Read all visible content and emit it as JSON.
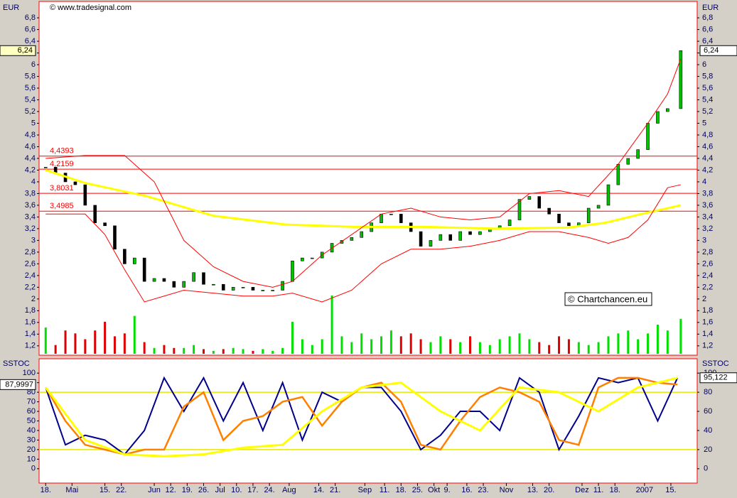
{
  "chart_data": [
    {
      "type": "line",
      "watermark": "© www.tradesignal.com",
      "annotation": "© Chartchancen.eu",
      "y_label": "EUR",
      "xlim": [
        -2,
        198
      ],
      "ylim": [
        1.04,
        7.08
      ],
      "yticks": [
        {
          "value": 1.2,
          "label": "1,2"
        },
        {
          "value": 1.4,
          "label": "1,4"
        },
        {
          "value": 1.6,
          "label": "1,6"
        },
        {
          "value": 1.8,
          "label": "1,8"
        },
        2,
        {
          "value": 2.2,
          "label": "2,2"
        },
        {
          "value": 2.4,
          "label": "2,4"
        },
        {
          "value": 2.6,
          "label": "2,6"
        },
        {
          "value": 2.8,
          "label": "2,8"
        },
        3,
        {
          "value": 3.2,
          "label": "3,2"
        },
        {
          "value": 3.4,
          "label": "3,4"
        },
        {
          "value": 3.6,
          "label": "3,6"
        },
        {
          "value": 3.8,
          "label": "3,8"
        },
        4,
        {
          "value": 4.2,
          "label": "4,2"
        },
        {
          "value": 4.4,
          "label": "4,4"
        },
        {
          "value": 4.6,
          "label": "4,6"
        },
        {
          "value": 4.8,
          "label": "4,8"
        },
        5,
        {
          "value": 5.2,
          "label": "5,2"
        },
        {
          "value": 5.4,
          "label": "5,4"
        },
        {
          "value": 5.6,
          "label": "5,6"
        },
        {
          "value": 5.8,
          "label": "5,8"
        },
        6,
        {
          "value": 6.2,
          "label": "6,2"
        },
        {
          "value": 6.4,
          "label": "6,4"
        },
        {
          "value": 6.6,
          "label": "6,6"
        },
        {
          "value": 6.8,
          "label": "6,8"
        }
      ],
      "levels": [
        {
          "value": 4.4393,
          "label": "4,4393"
        },
        {
          "value": 4.2159,
          "label": "4,2159"
        },
        {
          "value": 3.8031,
          "label": "3,8031"
        },
        {
          "value": 3.4985,
          "label": "3,4985"
        }
      ],
      "current": {
        "value": 6.24,
        "label": "6,24"
      },
      "series": [
        {
          "style": "candle",
          "color": "#00c000",
          "x": [
            0,
            3,
            6,
            9,
            12,
            15,
            18,
            21,
            24,
            27,
            30,
            33,
            36,
            39,
            42,
            45,
            48,
            51,
            54,
            57,
            60,
            63,
            66,
            69,
            72,
            75,
            78,
            81,
            84,
            87,
            90,
            93,
            96,
            99,
            102,
            105,
            108,
            111,
            114,
            117,
            120,
            123,
            126,
            129,
            132,
            135,
            138,
            141,
            144,
            147,
            150,
            153,
            156,
            159,
            162,
            165,
            168,
            171,
            174,
            177,
            180,
            183,
            186,
            189,
            193
          ],
          "values": [
            4.25,
            4.15,
            4.0,
            3.95,
            3.6,
            3.3,
            3.25,
            2.85,
            2.6,
            2.7,
            2.3,
            2.35,
            2.3,
            2.2,
            2.3,
            2.45,
            2.25,
            2.25,
            2.15,
            2.2,
            2.2,
            2.15,
            2.15,
            2.15,
            2.3,
            2.65,
            2.7,
            2.7,
            2.8,
            2.95,
            3.0,
            3.05,
            3.15,
            3.3,
            3.45,
            3.45,
            3.3,
            3.15,
            2.9,
            3.0,
            3.1,
            3.0,
            3.15,
            3.1,
            3.15,
            3.2,
            3.25,
            3.35,
            3.7,
            3.75,
            3.55,
            3.45,
            3.3,
            3.25,
            3.3,
            3.55,
            3.6,
            3.95,
            4.3,
            4.4,
            4.55,
            5.0,
            5.2,
            5.25,
            6.24
          ]
        },
        {
          "style": "line",
          "color": "#ffff00",
          "width": 3,
          "x": [
            0,
            12,
            31,
            51,
            73,
            94,
            116,
            137,
            159,
            170,
            181,
            193
          ],
          "values": [
            4.2,
            3.98,
            3.75,
            3.42,
            3.27,
            3.23,
            3.23,
            3.2,
            3.22,
            3.3,
            3.45,
            3.6
          ]
        },
        {
          "style": "line",
          "color": "#ff0000",
          "width": 1,
          "x": [
            0,
            12,
            24,
            33,
            42,
            51,
            60,
            69,
            75,
            84,
            93,
            102,
            111,
            120,
            129,
            138,
            147,
            156,
            165,
            174,
            183,
            189,
            193
          ],
          "values": [
            4.4,
            4.45,
            4.45,
            4.0,
            3.0,
            2.55,
            2.3,
            2.2,
            2.3,
            2.75,
            3.1,
            3.45,
            3.55,
            3.4,
            3.35,
            3.4,
            3.8,
            3.85,
            3.75,
            4.3,
            5.0,
            5.5,
            6.1
          ]
        },
        {
          "style": "line",
          "color": "#ff0000",
          "width": 1,
          "x": [
            0,
            12,
            18,
            24,
            30,
            36,
            42,
            51,
            60,
            69,
            75,
            84,
            93,
            102,
            111,
            120,
            129,
            138,
            147,
            156,
            165,
            171,
            177,
            183,
            189,
            193
          ],
          "values": [
            3.45,
            3.45,
            3.1,
            2.5,
            1.95,
            2.05,
            2.15,
            2.1,
            2.05,
            2.05,
            2.1,
            1.95,
            2.15,
            2.6,
            2.85,
            2.85,
            2.9,
            3.0,
            3.15,
            3.15,
            3.05,
            2.95,
            3.05,
            3.35,
            3.9,
            3.95
          ]
        }
      ],
      "volume": {
        "vlim": [
          0,
          100
        ],
        "values": [
          45,
          15,
          40,
          35,
          25,
          40,
          55,
          30,
          35,
          65,
          20,
          10,
          15,
          10,
          10,
          15,
          8,
          5,
          8,
          10,
          8,
          5,
          8,
          5,
          10,
          55,
          25,
          15,
          25,
          100,
          30,
          20,
          35,
          25,
          30,
          40,
          30,
          35,
          25,
          20,
          30,
          25,
          20,
          30,
          20,
          15,
          25,
          30,
          35,
          25,
          20,
          15,
          30,
          25,
          20,
          15,
          20,
          30,
          35,
          40,
          25,
          35,
          50,
          40,
          60
        ]
      }
    },
    {
      "type": "line",
      "y_label": "SSTOC",
      "xlim": [
        -2,
        198
      ],
      "ylim": [
        -15,
        115
      ],
      "yticks": [
        0,
        10,
        20,
        30,
        40,
        50,
        60,
        70,
        80,
        90,
        100
      ],
      "y2lim": [
        -15,
        115
      ],
      "y2ticks": [
        0,
        20,
        40,
        60,
        80,
        100
      ],
      "levels": [
        80,
        20
      ],
      "current_left": {
        "value": 87.9997,
        "label": "87,9997"
      },
      "current_right": {
        "value": 95.122,
        "label": "95,122"
      },
      "xticks": [
        {
          "value": 0,
          "label": "18."
        },
        {
          "value": 8,
          "label": "Mai"
        },
        {
          "value": 18,
          "label": "15."
        },
        {
          "value": 23,
          "label": "22."
        },
        {
          "value": 33,
          "label": "Jun"
        },
        {
          "value": 38,
          "label": "12."
        },
        {
          "value": 43,
          "label": "19."
        },
        {
          "value": 48,
          "label": "26."
        },
        {
          "value": 53,
          "label": "Jul"
        },
        {
          "value": 58,
          "label": "10."
        },
        {
          "value": 63,
          "label": "17."
        },
        {
          "value": 68,
          "label": "24."
        },
        {
          "value": 74,
          "label": "Aug"
        },
        {
          "value": 83,
          "label": "14."
        },
        {
          "value": 88,
          "label": "21."
        },
        {
          "value": 97,
          "label": "Sep"
        },
        {
          "value": 103,
          "label": "11."
        },
        {
          "value": 108,
          "label": "18."
        },
        {
          "value": 113,
          "label": "25."
        },
        {
          "value": 118,
          "label": "Okt"
        },
        {
          "value": 122,
          "label": "9."
        },
        {
          "value": 128,
          "label": "16."
        },
        {
          "value": 133,
          "label": "23."
        },
        {
          "value": 140,
          "label": "Nov"
        },
        {
          "value": 148,
          "label": "13."
        },
        {
          "value": 153,
          "label": "20."
        },
        {
          "value": 163,
          "label": "Dez"
        },
        {
          "value": 168,
          "label": "11."
        },
        {
          "value": 173,
          "label": "18."
        },
        {
          "value": 182,
          "label": "2007"
        },
        {
          "value": 190,
          "label": "15."
        }
      ],
      "series": [
        {
          "color": "#00008b",
          "width": 2,
          "x": [
            0,
            6,
            12,
            18,
            24,
            30,
            36,
            42,
            48,
            54,
            60,
            66,
            72,
            78,
            84,
            90,
            96,
            102,
            108,
            114,
            120,
            126,
            132,
            138,
            144,
            150,
            156,
            162,
            168,
            174,
            180,
            186,
            192
          ],
          "values": [
            85,
            25,
            35,
            30,
            15,
            40,
            95,
            60,
            95,
            50,
            90,
            40,
            90,
            30,
            80,
            70,
            85,
            85,
            60,
            20,
            35,
            60,
            60,
            40,
            95,
            80,
            20,
            55,
            95,
            90,
            95,
            50,
            95
          ]
        },
        {
          "color": "#ff8000",
          "width": 2.5,
          "x": [
            0,
            6,
            12,
            18,
            24,
            30,
            36,
            42,
            48,
            54,
            60,
            66,
            72,
            78,
            84,
            90,
            96,
            102,
            108,
            114,
            120,
            126,
            132,
            138,
            144,
            150,
            156,
            162,
            168,
            174,
            180,
            186,
            192
          ],
          "values": [
            85,
            50,
            25,
            20,
            15,
            20,
            20,
            65,
            80,
            30,
            50,
            55,
            70,
            75,
            45,
            70,
            85,
            90,
            70,
            25,
            20,
            50,
            75,
            85,
            80,
            70,
            30,
            25,
            85,
            95,
            95,
            90,
            88
          ]
        },
        {
          "color": "#ffff00",
          "width": 3,
          "x": [
            0,
            12,
            24,
            36,
            48,
            60,
            72,
            84,
            96,
            108,
            120,
            132,
            144,
            156,
            168,
            180,
            192
          ],
          "values": [
            85,
            30,
            15,
            13,
            15,
            22,
            25,
            60,
            85,
            90,
            60,
            40,
            85,
            80,
            60,
            85,
            95
          ]
        }
      ]
    }
  ]
}
